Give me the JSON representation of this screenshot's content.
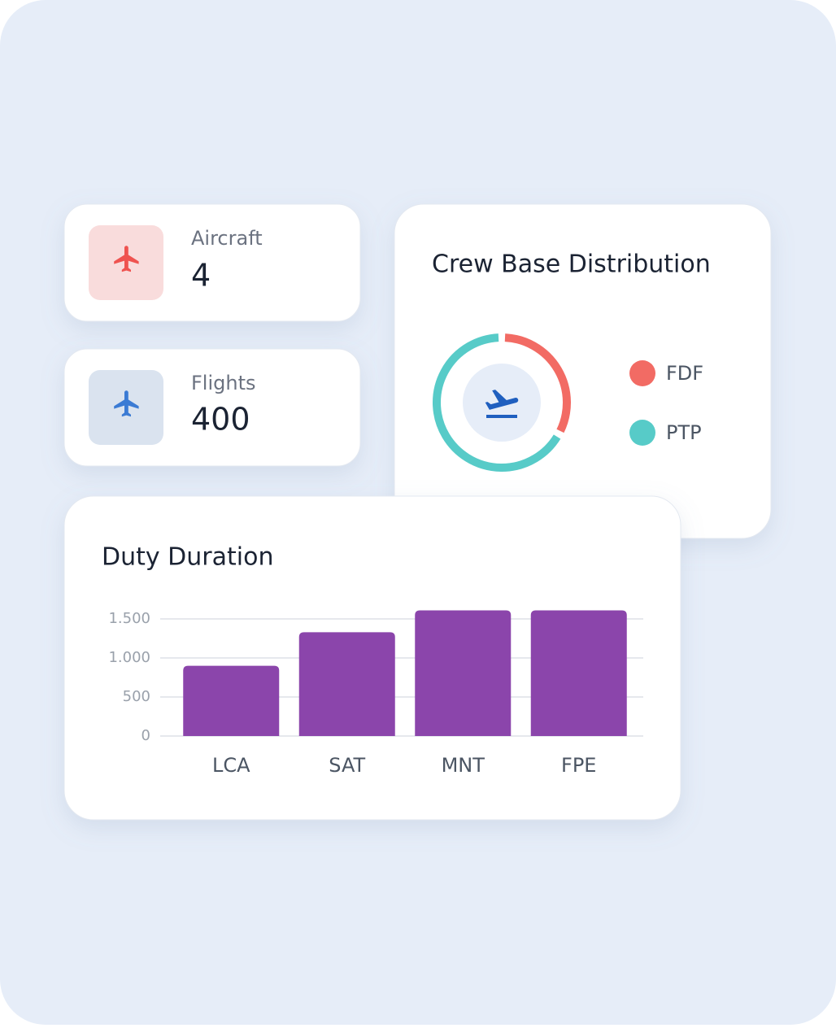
{
  "stats": [
    {
      "label": "Aircraft",
      "value": 4
    },
    {
      "label": "Flights",
      "value": 400
    }
  ],
  "chart_data": [
    {
      "type": "pie",
      "title": "Crew Base Distribution",
      "categories": [
        "FDF",
        "PTP"
      ],
      "values": [
        33,
        67
      ],
      "colors": [
        "#f26b64",
        "#57cbc8"
      ],
      "donut": true
    },
    {
      "type": "bar",
      "title": "Duty Duration",
      "categories": [
        "LCA",
        "SAT",
        "MNT",
        "FPE"
      ],
      "values": [
        900,
        1330,
        1610,
        1610
      ],
      "color": "#8b45ab",
      "ylim": [
        0,
        1620
      ],
      "yticks": [
        0,
        500,
        {
          "value": 1000,
          "label": "1.000"
        },
        {
          "value": 1500,
          "label": "1.500"
        }
      ],
      "grid": true
    }
  ]
}
